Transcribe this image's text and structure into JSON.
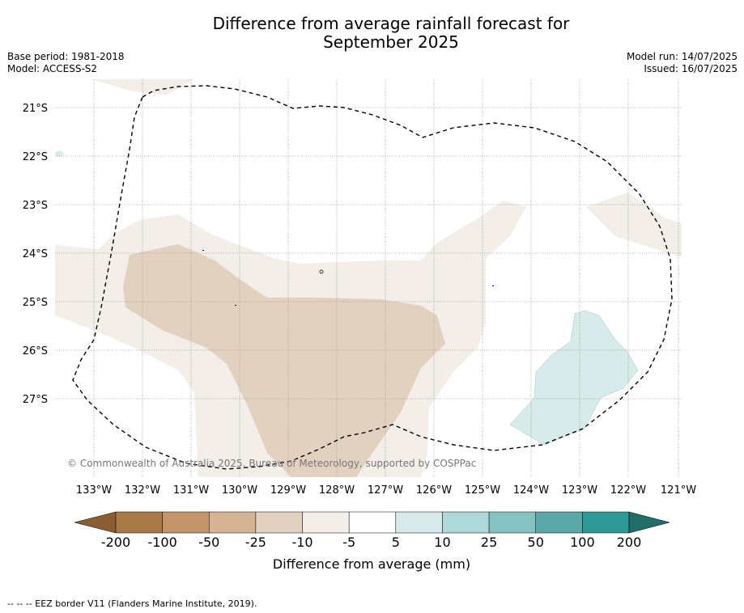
{
  "title": {
    "line1": "Difference from average rainfall forecast for",
    "line2": "September 2025"
  },
  "meta_left": {
    "base_period": "Base period: 1981-2018",
    "model": "Model: ACCESS-S2"
  },
  "meta_right": {
    "model_run": "Model run: 14/07/2025",
    "issued": "Issued: 16/07/2025"
  },
  "map": {
    "lat_labels": [
      "21°S",
      "22°S",
      "23°S",
      "24°S",
      "25°S",
      "26°S",
      "27°S"
    ],
    "lon_labels": [
      "133°W",
      "132°W",
      "131°W",
      "130°W",
      "129°W",
      "128°W",
      "127°W",
      "126°W",
      "125°W",
      "124°W",
      "123°W",
      "122°W",
      "121°W"
    ],
    "copyright": "© Commonwealth of Australia 2025, Bureau of Meteorology, supported by COSPPac"
  },
  "colorbar": {
    "ticks": [
      "-200",
      "-100",
      "-50",
      "-25",
      "-10",
      "-5",
      "5",
      "10",
      "25",
      "50",
      "100",
      "200"
    ],
    "colors": [
      "#a87a45",
      "#c4956a",
      "#d6b394",
      "#e3d1c0",
      "#f4eee9",
      "#ffffff",
      "#d6ebea",
      "#afd9d8",
      "#85c3c1",
      "#5aa9a8",
      "#2f9995"
    ],
    "under_color": "#8a5d32",
    "over_color": "#216e69",
    "label": "Difference from average (mm)"
  },
  "footer": {
    "legend": "-- -- -- EEZ border V11 (Flanders Marine Institute, 2019)."
  }
}
